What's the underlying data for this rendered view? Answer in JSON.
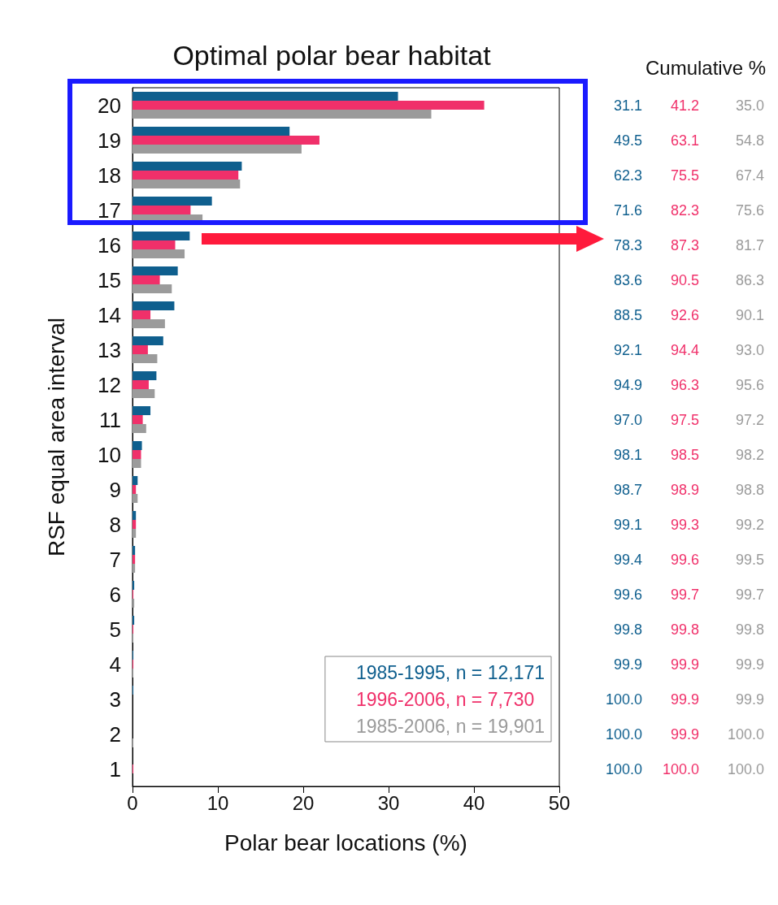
{
  "chart_data": {
    "type": "bar",
    "orientation": "horizontal",
    "title": "Optimal polar bear habitat",
    "xlabel": "Polar bear locations (%)",
    "ylabel": "RSF equal area interval",
    "categories": [
      "20",
      "19",
      "18",
      "17",
      "16",
      "15",
      "14",
      "13",
      "12",
      "11",
      "10",
      "9",
      "8",
      "7",
      "6",
      "5",
      "4",
      "3",
      "2",
      "1"
    ],
    "series": [
      {
        "name": "1985-1995, n = 12,171",
        "color": "#0f5f8e",
        "values": [
          31.1,
          18.4,
          12.8,
          9.3,
          6.7,
          5.3,
          4.9,
          3.6,
          2.8,
          2.1,
          1.1,
          0.6,
          0.4,
          0.3,
          0.2,
          0.2,
          0.1,
          0.1,
          0,
          0
        ]
      },
      {
        "name": "1996-2006, n = 7,730",
        "color": "#f0306a",
        "values": [
          41.2,
          21.9,
          12.4,
          6.8,
          5.0,
          3.2,
          2.1,
          1.8,
          1.9,
          1.2,
          1.0,
          0.4,
          0.4,
          0.3,
          0.1,
          0.1,
          0.1,
          0,
          0,
          0.1
        ]
      },
      {
        "name": "1985-2006, n = 19,901",
        "color": "#9b9b9b",
        "values": [
          35.0,
          19.8,
          12.6,
          8.2,
          6.1,
          4.6,
          3.8,
          2.9,
          2.6,
          1.6,
          1.0,
          0.6,
          0.4,
          0.3,
          0.2,
          0.1,
          0.1,
          0,
          0.1,
          0
        ]
      }
    ],
    "xlim": [
      0,
      50
    ],
    "xticks": [
      0,
      10,
      20,
      30,
      40,
      50
    ],
    "annotations": [
      "Cumulative %",
      "31.1",
      "49.5",
      "62.3",
      "71.6",
      "78.3",
      "83.6",
      "88.5",
      "92.1",
      "94.9",
      "97.0",
      "98.1",
      "98.7",
      "99.1",
      "99.4",
      "99.6",
      "99.8",
      "99.9",
      "100.0",
      "100.0",
      "100.0",
      "41.2",
      "63.1",
      "75.5",
      "82.3",
      "87.3",
      "90.5",
      "92.6",
      "94.4",
      "96.3",
      "97.5",
      "98.5",
      "98.9",
      "99.3",
      "99.6",
      "99.7",
      "99.8",
      "99.9",
      "99.9",
      "99.9",
      "100.0",
      "35.0",
      "54.8",
      "67.4",
      "75.6",
      "81.7",
      "86.3",
      "90.1",
      "93.0",
      "95.6",
      "97.2",
      "98.2",
      "98.8",
      "99.2",
      "99.5",
      "99.7",
      "99.8",
      "99.9",
      "99.9",
      "100.0",
      "100.0"
    ],
    "legend": "bottom right",
    "grid": false
  }
}
